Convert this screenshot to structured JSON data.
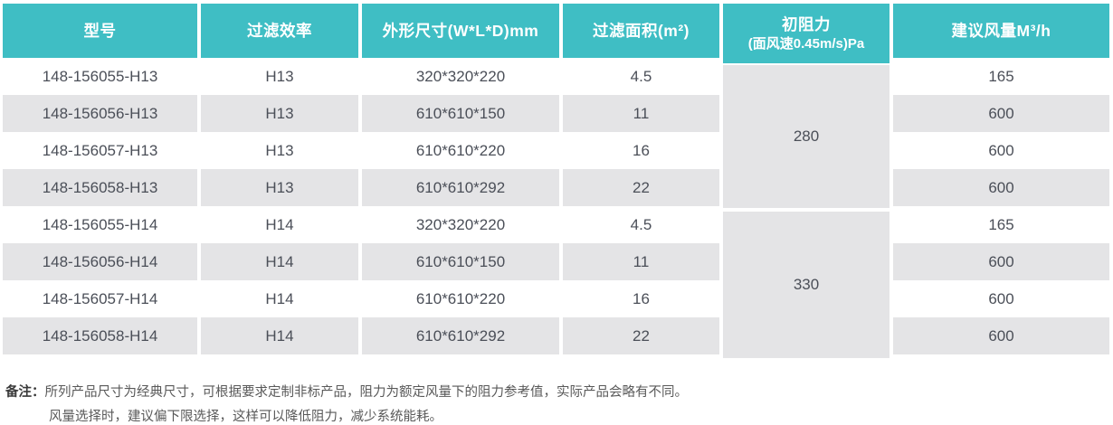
{
  "table": {
    "columns": [
      {
        "label": "型号"
      },
      {
        "label": "过滤效率"
      },
      {
        "label": "外形尺寸(W*L*D)mm"
      },
      {
        "label": "过滤面积(m²)"
      },
      {
        "label": "初阻力",
        "sublabel": "(面风速0.45m/s)Pa"
      },
      {
        "label": "建议风量M³/h"
      }
    ],
    "rows": [
      {
        "model": "148-156055-H13",
        "efficiency": "H13",
        "size": "320*320*220",
        "area": "4.5",
        "airflow": "165"
      },
      {
        "model": "148-156056-H13",
        "efficiency": "H13",
        "size": "610*610*150",
        "area": "11",
        "airflow": "600"
      },
      {
        "model": "148-156057-H13",
        "efficiency": "H13",
        "size": "610*610*220",
        "area": "16",
        "airflow": "600"
      },
      {
        "model": "148-156058-H13",
        "efficiency": "H13",
        "size": "610*610*292",
        "area": "22",
        "airflow": "600"
      },
      {
        "model": "148-156055-H14",
        "efficiency": "H14",
        "size": "320*320*220",
        "area": "4.5",
        "airflow": "165"
      },
      {
        "model": "148-156056-H14",
        "efficiency": "H14",
        "size": "610*610*150",
        "area": "11",
        "airflow": "600"
      },
      {
        "model": "148-156057-H14",
        "efficiency": "H14",
        "size": "610*610*220",
        "area": "16",
        "airflow": "600"
      },
      {
        "model": "148-156058-H14",
        "efficiency": "H14",
        "size": "610*610*292",
        "area": "22",
        "airflow": "600"
      }
    ],
    "resistance_groups": [
      {
        "value": "280",
        "span_rows": 4
      },
      {
        "value": "330",
        "span_rows": 4
      }
    ]
  },
  "notes": {
    "label": "备注：",
    "line1": "所列产品尺寸为经典尺寸，可根据要求定制非标产品，阻力为额定风量下的阻力参考值，实际产品会略有不同。",
    "line2": "风量选择时，建议偏下限选择，这样可以降低阻力，减少系统能耗。"
  },
  "colors": {
    "header_teal": "#3FBEC4",
    "row_stripe_gray": "#E4E4E6",
    "body_text": "#4B4F58",
    "header_text": "#FFFFFF"
  }
}
